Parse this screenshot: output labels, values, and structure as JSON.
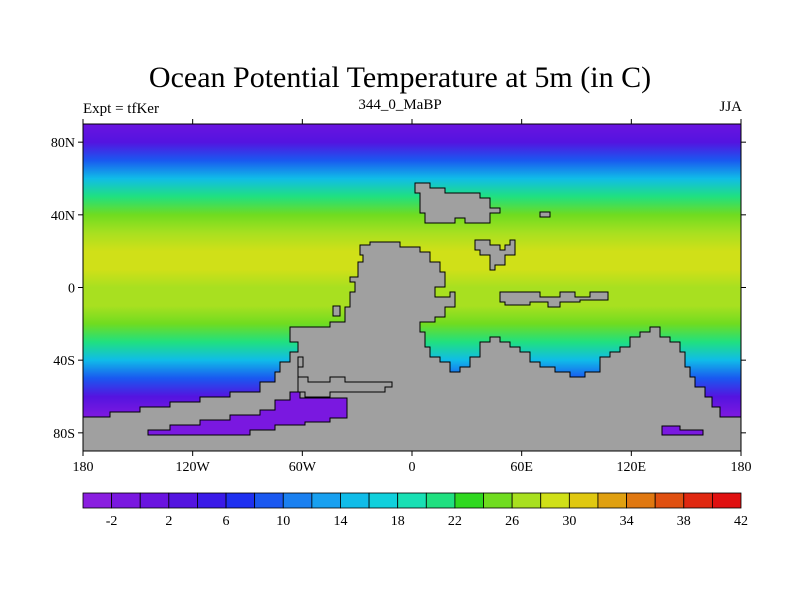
{
  "title": "Ocean Potential Temperature at 5m (in C)",
  "subtitle_left": "Expt = tfKer",
  "subtitle_center": "344_0_MaBP",
  "subtitle_right": "JJA",
  "map": {
    "lon_range": [
      -180,
      180
    ],
    "lat_range": [
      -90,
      90
    ],
    "x_ticks": [
      {
        "value": -180,
        "label": "180"
      },
      {
        "value": -120,
        "label": "120W"
      },
      {
        "value": -60,
        "label": "60W"
      },
      {
        "value": 0,
        "label": "0"
      },
      {
        "value": 60,
        "label": "60E"
      },
      {
        "value": 120,
        "label": "120E"
      },
      {
        "value": 180,
        "label": "180"
      }
    ],
    "y_ticks": [
      {
        "value": 80,
        "label": "80N"
      },
      {
        "value": 40,
        "label": "40N"
      },
      {
        "value": 0,
        "label": "0"
      },
      {
        "value": -40,
        "label": "40S"
      },
      {
        "value": -80,
        "label": "80S"
      }
    ],
    "land_color": "#a0a0a0",
    "zonal_temperature_profile": [
      {
        "lat": 90,
        "temp": 0
      },
      {
        "lat": 80,
        "temp": 2
      },
      {
        "lat": 70,
        "temp": 8
      },
      {
        "lat": 60,
        "temp": 14
      },
      {
        "lat": 50,
        "temp": 20
      },
      {
        "lat": 40,
        "temp": 24
      },
      {
        "lat": 30,
        "temp": 26
      },
      {
        "lat": 20,
        "temp": 28
      },
      {
        "lat": 10,
        "temp": 28
      },
      {
        "lat": 0,
        "temp": 27
      },
      {
        "lat": -10,
        "temp": 26
      },
      {
        "lat": -20,
        "temp": 24
      },
      {
        "lat": -30,
        "temp": 20
      },
      {
        "lat": -40,
        "temp": 14
      },
      {
        "lat": -50,
        "temp": 8
      },
      {
        "lat": -60,
        "temp": 2
      },
      {
        "lat": -70,
        "temp": -1
      },
      {
        "lat": -90,
        "temp": -2
      }
    ]
  },
  "colorbar": {
    "colors": [
      "#8a1ee0",
      "#7a18e0",
      "#6a14e0",
      "#5414e0",
      "#3a1ae8",
      "#1e30f0",
      "#1a58f0",
      "#1a80f0",
      "#18a0f0",
      "#10bce8",
      "#10d0dc",
      "#18e0b4",
      "#20e080",
      "#30d820",
      "#70dc20",
      "#a8e020",
      "#d0e018",
      "#e0c810",
      "#e0a010",
      "#e07810",
      "#e05010",
      "#e02810",
      "#e01010"
    ],
    "labels": [
      "-2",
      "2",
      "6",
      "10",
      "14",
      "18",
      "22",
      "26",
      "30",
      "34",
      "38",
      "42"
    ]
  }
}
